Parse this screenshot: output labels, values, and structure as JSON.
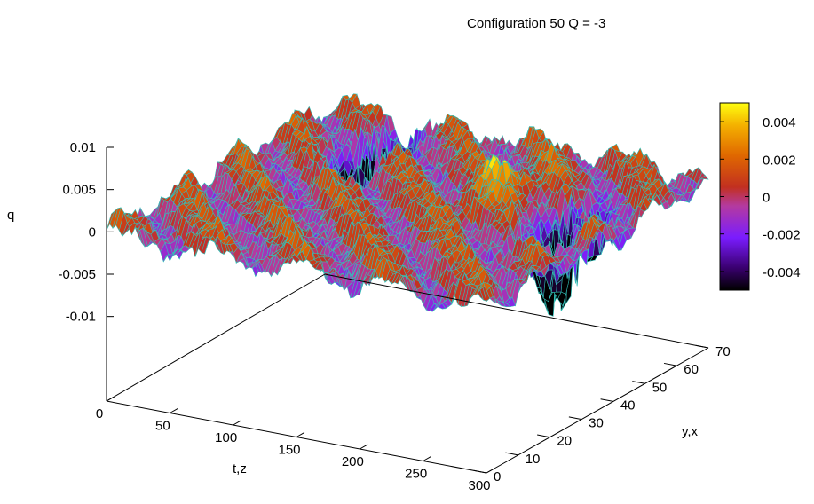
{
  "chart_data": {
    "type": "surface",
    "title": "Configuration  50  Q = -3",
    "xlabel": "t,z",
    "ylabel": "y,x",
    "zlabel": "q",
    "xlim": [
      0,
      300
    ],
    "ylim": [
      0,
      70
    ],
    "zlim": [
      -0.01,
      0.01
    ],
    "xticks": [
      "0",
      "50",
      "100",
      "150",
      "200",
      "250",
      "300"
    ],
    "yticks": [
      "0",
      "10",
      "20",
      "30",
      "40",
      "50",
      "60",
      "70"
    ],
    "zticks": [
      "0.01",
      "0.005",
      "0",
      "-0.005",
      "-0.01"
    ],
    "colorbar": {
      "range": [
        -0.005,
        0.005
      ],
      "ticks": [
        "0.004",
        "0.002",
        "0",
        "-0.002",
        "-0.004"
      ],
      "palette": "gnuplot pm3d: black-purple-blue-red-orange-yellow"
    },
    "mesh_color": "#33c0b8",
    "grid": false,
    "features": [
      {
        "description": "deep negative dips",
        "t": 70,
        "y": 55,
        "q": -0.0095
      },
      {
        "description": "negative dips",
        "t": 260,
        "y": 40,
        "q": -0.009
      },
      {
        "description": "positive ridge",
        "t": 200,
        "y": 45,
        "q": 0.0035
      }
    ]
  }
}
